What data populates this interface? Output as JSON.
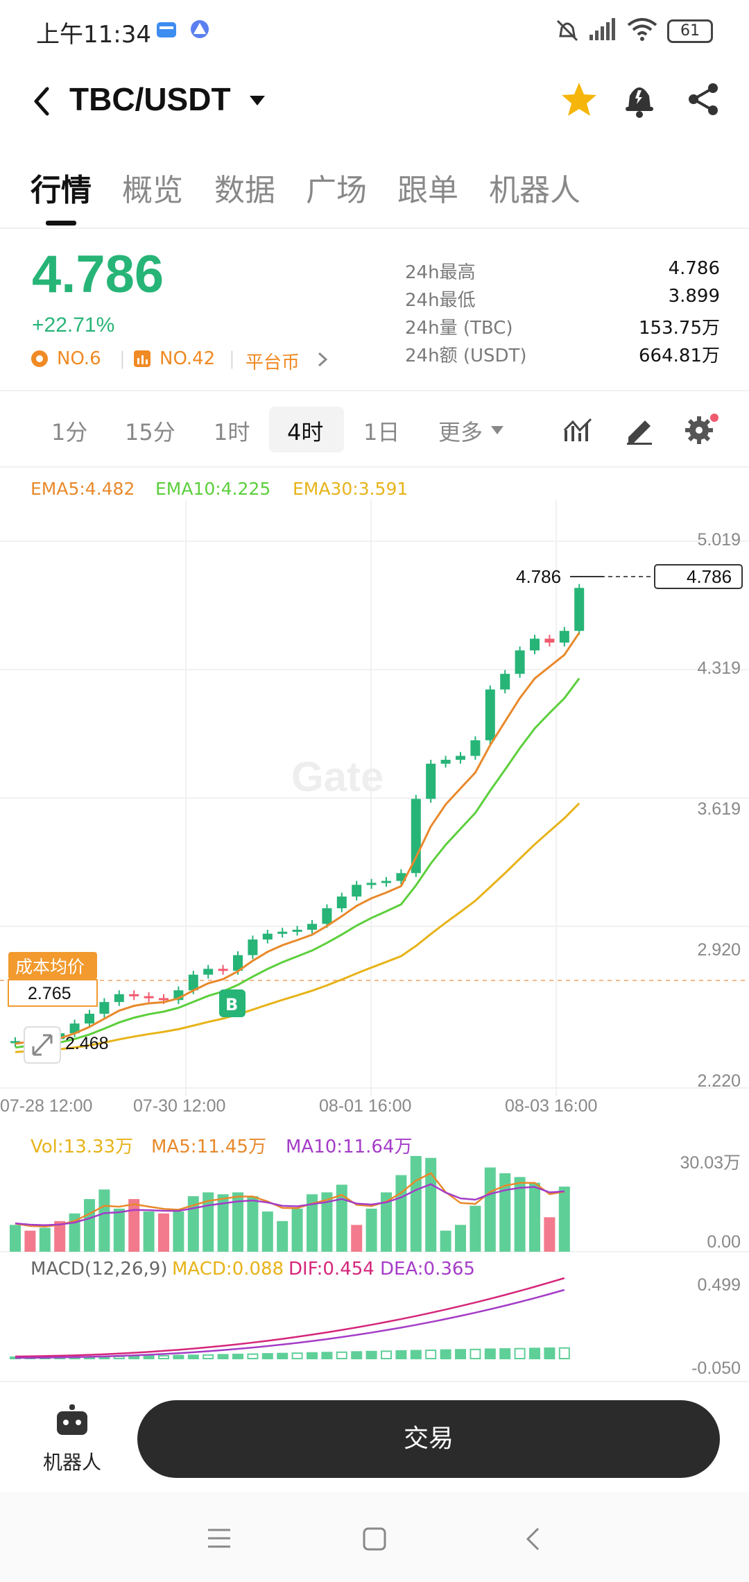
{
  "status_bar": {
    "time": "上午11:34",
    "battery": "61"
  },
  "header": {
    "pair": "TBC/USDT"
  },
  "tabs": [
    {
      "label": "行情",
      "active": true
    },
    {
      "label": "概览"
    },
    {
      "label": "数据"
    },
    {
      "label": "广场"
    },
    {
      "label": "跟单"
    },
    {
      "label": "机器人"
    }
  ],
  "ticker": {
    "price": "4.786",
    "change": "+22.71%",
    "rank1": "NO.6",
    "rank2": "NO.42",
    "category": "平台币",
    "stats": [
      {
        "label": "24h最高",
        "value": "4.786"
      },
      {
        "label": "24h最低",
        "value": "3.899"
      },
      {
        "label": "24h量 (TBC)",
        "value": "153.75万"
      },
      {
        "label": "24h额 (USDT)",
        "value": "664.81万"
      }
    ]
  },
  "intervals": [
    "1分",
    "15分",
    "1时",
    "4时",
    "1日",
    "更多"
  ],
  "active_interval": "4时",
  "ema": {
    "ema5": "EMA5:4.482",
    "ema10": "EMA10:4.225",
    "ema30": "EMA30:3.591"
  },
  "chart": {
    "y_ticks": [
      "5.019",
      "4.319",
      "3.619",
      "2.920",
      "2.220"
    ],
    "x_ticks": [
      "07-28 12:00",
      "07-30 12:00",
      "08-01 16:00",
      "08-03 16:00"
    ],
    "last_price_label": "4.786",
    "last_price_tag": "4.786",
    "cost_label": "成本均价",
    "cost_value": "2.765",
    "low_label": "2.468",
    "buy_marker": "B",
    "watermark": "Gate"
  },
  "volume": {
    "vol": "Vol:13.33万",
    "ma5": "MA5:11.45万",
    "ma10": "MA10:11.64万",
    "y_max": "30.03万",
    "y_min": "0.00"
  },
  "macd": {
    "title": "MACD(12,26,9)",
    "macd": "MACD:0.088",
    "dif": "DIF:0.454",
    "dea": "DEA:0.365",
    "y_max": "0.499",
    "y_min": "-0.050"
  },
  "bottom": {
    "robot_label": "机器人",
    "trade_label": "交易"
  },
  "colors": {
    "up": "#27b477",
    "down": "#f05a6e",
    "ema5": "#e8892b",
    "ema10": "#5ccf3c",
    "ema30": "#e7b319",
    "macd": "#e7b319",
    "dif": "#d4267a",
    "dea": "#a43cc7"
  }
}
